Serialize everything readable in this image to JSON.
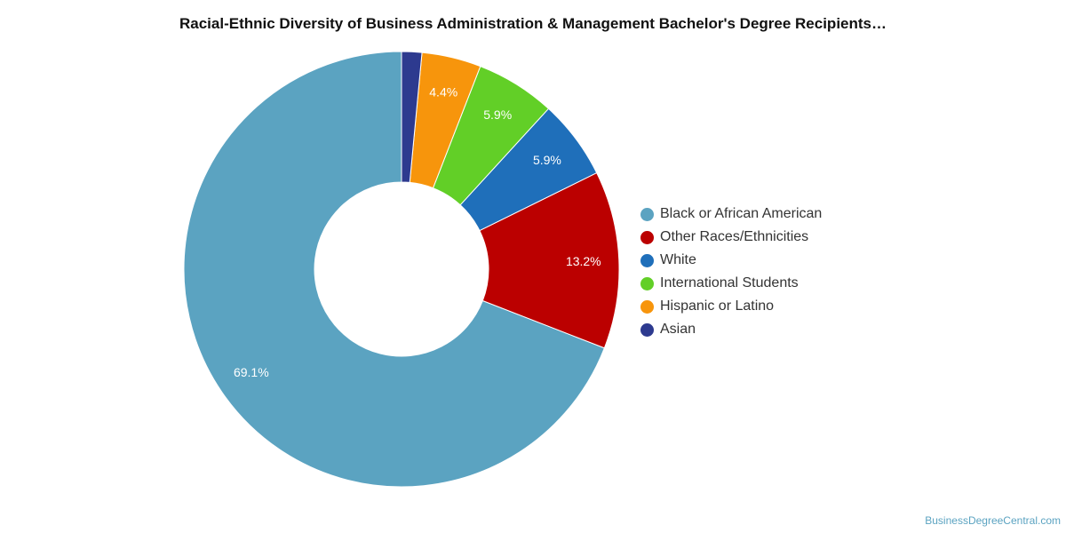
{
  "header": {
    "title": "Racial-Ethnic Diversity of Business Administration & Management Bachelor's Degree Recipients…"
  },
  "chart_data": {
    "type": "pie",
    "variant": "donut",
    "title": "Racial-Ethnic Diversity of Business Administration & Management Bachelor's Degree Recipients…",
    "legend_placement": "right",
    "slices": [
      {
        "name": "Black or African American",
        "value": 69.1,
        "label": "69.1%",
        "color": "#5ba3c1"
      },
      {
        "name": "Other Races/Ethnicities",
        "value": 13.2,
        "label": "13.2%",
        "color": "#bb0000"
      },
      {
        "name": "White",
        "value": 5.9,
        "label": "5.9%",
        "color": "#1f6fba"
      },
      {
        "name": "International Students",
        "value": 5.9,
        "label": "5.9%",
        "color": "#62cf27"
      },
      {
        "name": "Hispanic or Latino",
        "value": 4.4,
        "label": "4.4%",
        "color": "#f7950c"
      },
      {
        "name": "Asian",
        "value": 1.5,
        "label": "",
        "color": "#2d3a8f"
      }
    ]
  },
  "footer": {
    "watermark": "BusinessDegreeCentral.com"
  }
}
